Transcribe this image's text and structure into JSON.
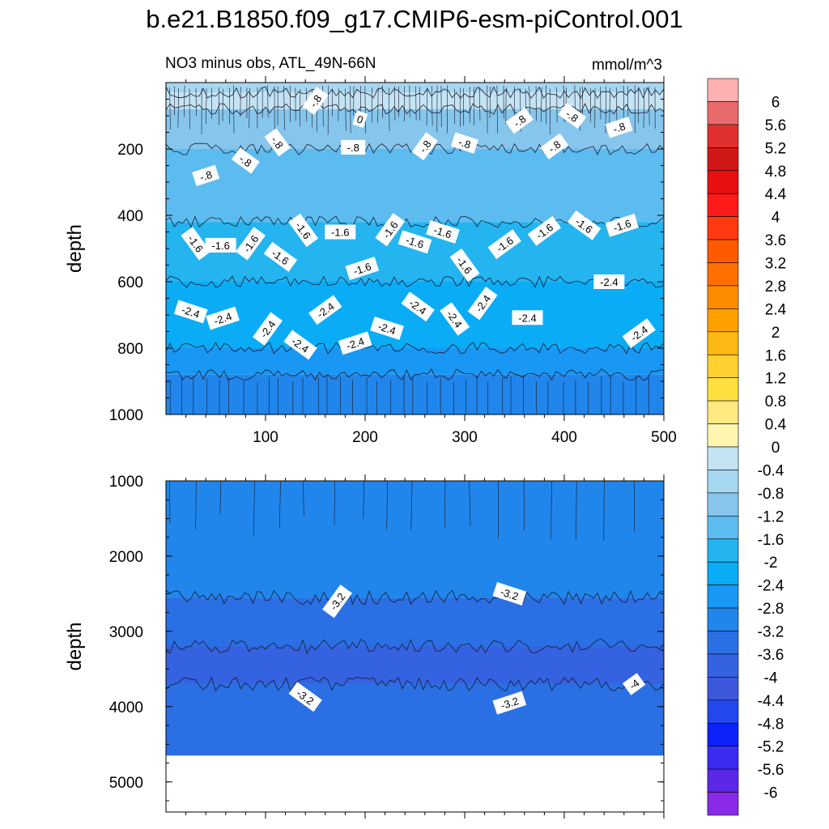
{
  "chart_data": {
    "type": "contour",
    "title": "b.e21.B1850.f09_g17.CMIP6-esm-piControl.001",
    "left_label": "NO3 minus obs, ATL_49N-66N",
    "right_label": "mmol/m^3",
    "panels": [
      {
        "name": "upper",
        "ylabel": "depth",
        "xlim": [
          0,
          500
        ],
        "ylim": [
          0,
          1000
        ],
        "y_inverted": true,
        "x_ticks": [
          "100",
          "200",
          "300",
          "400",
          "500"
        ],
        "y_ticks": [
          "200",
          "400",
          "600",
          "800",
          "1000"
        ],
        "bands": [
          {
            "from_depth": 0,
            "to_depth": 30,
            "level": "-0.4"
          },
          {
            "from_depth": 30,
            "to_depth": 80,
            "level": "0"
          },
          {
            "from_depth": 80,
            "to_depth": 200,
            "level": "-0.8"
          },
          {
            "from_depth": 200,
            "to_depth": 420,
            "level": "-1.2"
          },
          {
            "from_depth": 420,
            "to_depth": 600,
            "level": "-1.6"
          },
          {
            "from_depth": 600,
            "to_depth": 800,
            "level": "-2"
          },
          {
            "from_depth": 800,
            "to_depth": 880,
            "level": "-2.4"
          },
          {
            "from_depth": 880,
            "to_depth": 1000,
            "level": "-2.8"
          }
        ],
        "contour_labels": [
          {
            "text": "-.8",
            "x": 150,
            "y": 55
          },
          {
            "text": "0",
            "x": 195,
            "y": 110
          },
          {
            "text": "-.8",
            "x": 355,
            "y": 115
          },
          {
            "text": "-.8",
            "x": 408,
            "y": 100
          },
          {
            "text": "-.8",
            "x": 455,
            "y": 135
          },
          {
            "text": "-.8",
            "x": 112,
            "y": 180
          },
          {
            "text": "-.8",
            "x": 188,
            "y": 195
          },
          {
            "text": "-.8",
            "x": 260,
            "y": 192
          },
          {
            "text": "-.8",
            "x": 300,
            "y": 182
          },
          {
            "text": "-.8",
            "x": 390,
            "y": 192
          },
          {
            "text": "-.8",
            "x": 80,
            "y": 235
          },
          {
            "text": "-.8",
            "x": 40,
            "y": 280
          },
          {
            "text": "-1.6",
            "x": 138,
            "y": 445
          },
          {
            "text": "-1.6",
            "x": 175,
            "y": 450
          },
          {
            "text": "-1.6",
            "x": 225,
            "y": 443
          },
          {
            "text": "-1.6",
            "x": 278,
            "y": 450
          },
          {
            "text": "-1.6",
            "x": 380,
            "y": 447
          },
          {
            "text": "-1.6",
            "x": 420,
            "y": 430
          },
          {
            "text": "-1.6",
            "x": 458,
            "y": 430
          },
          {
            "text": "-1.6",
            "x": 30,
            "y": 485
          },
          {
            "text": "-1.6",
            "x": 55,
            "y": 490
          },
          {
            "text": "-1.6",
            "x": 85,
            "y": 485
          },
          {
            "text": "-1.6",
            "x": 250,
            "y": 480
          },
          {
            "text": "-1.6",
            "x": 340,
            "y": 487
          },
          {
            "text": "-1.6",
            "x": 115,
            "y": 525
          },
          {
            "text": "-1.6",
            "x": 197,
            "y": 560
          },
          {
            "text": "-1.6",
            "x": 300,
            "y": 550
          },
          {
            "text": "-2.4",
            "x": 445,
            "y": 600
          },
          {
            "text": "-2.4",
            "x": 318,
            "y": 665
          },
          {
            "text": "-2.4",
            "x": 25,
            "y": 690
          },
          {
            "text": "-2.4",
            "x": 160,
            "y": 685
          },
          {
            "text": "-2.4",
            "x": 253,
            "y": 675
          },
          {
            "text": "-2.4",
            "x": 57,
            "y": 710
          },
          {
            "text": "-2.4",
            "x": 290,
            "y": 712
          },
          {
            "text": "-2.4",
            "x": 363,
            "y": 708
          },
          {
            "text": "-2.4",
            "x": 102,
            "y": 742
          },
          {
            "text": "-2.4",
            "x": 222,
            "y": 740
          },
          {
            "text": "-2.4",
            "x": 475,
            "y": 755
          },
          {
            "text": "-2.4",
            "x": 135,
            "y": 790
          },
          {
            "text": "-2.4",
            "x": 190,
            "y": 785
          }
        ]
      },
      {
        "name": "lower",
        "ylabel": "depth",
        "xlim": [
          0,
          500
        ],
        "ylim": [
          1000,
          5400
        ],
        "y_inverted": true,
        "y_ticks": [
          "1000",
          "2000",
          "3000",
          "4000",
          "5000"
        ],
        "data_bottom_depth": 4650,
        "bands": [
          {
            "from_depth": 1000,
            "to_depth": 2550,
            "level": "-2.8"
          },
          {
            "from_depth": 2550,
            "to_depth": 3200,
            "level": "-3.2"
          },
          {
            "from_depth": 3200,
            "to_depth": 3700,
            "level": "-3.6"
          },
          {
            "from_depth": 3700,
            "to_depth": 4650,
            "level": "-3.2"
          }
        ],
        "contour_labels": [
          {
            "text": "-3.2",
            "x": 172,
            "y": 2600
          },
          {
            "text": "-3.2",
            "x": 345,
            "y": 2500
          },
          {
            "text": "-4",
            "x": 470,
            "y": 3700
          },
          {
            "text": "-3.2",
            "x": 140,
            "y": 3870
          },
          {
            "text": "-3.2",
            "x": 345,
            "y": 3950
          }
        ]
      }
    ],
    "colorbar": {
      "labels": [
        "6",
        "5.6",
        "5.2",
        "4.8",
        "4.4",
        "4",
        "3.6",
        "3.2",
        "2.8",
        "2.4",
        "2",
        "1.6",
        "1.2",
        "0.8",
        "0.4",
        "0",
        "-0.4",
        "-0.8",
        "-1.2",
        "-1.6",
        "-2",
        "-2.4",
        "-2.8",
        "-3.2",
        "-3.6",
        "-4",
        "-4.4",
        "-4.8",
        "-5.2",
        "-5.6",
        "-6"
      ],
      "colors": [
        "#ffb0b0",
        "#e86a6a",
        "#e03030",
        "#d01818",
        "#e81010",
        "#ff1a1a",
        "#ff3a10",
        "#ff5a00",
        "#ff7000",
        "#ff8c00",
        "#ffa000",
        "#ffb814",
        "#ffd030",
        "#ffe040",
        "#ffe980",
        "#fff6b0",
        "#c4e4f4",
        "#a6d6f0",
        "#86c6ec",
        "#5cbcf0",
        "#24b4f0",
        "#0aacf6",
        "#1898f4",
        "#2086ec",
        "#2a70e4",
        "#3462e0",
        "#3c58dc",
        "#2248ee",
        "#0c22f8",
        "#3a2cf0",
        "#5c28e8",
        "#8a2ae8"
      ]
    }
  }
}
